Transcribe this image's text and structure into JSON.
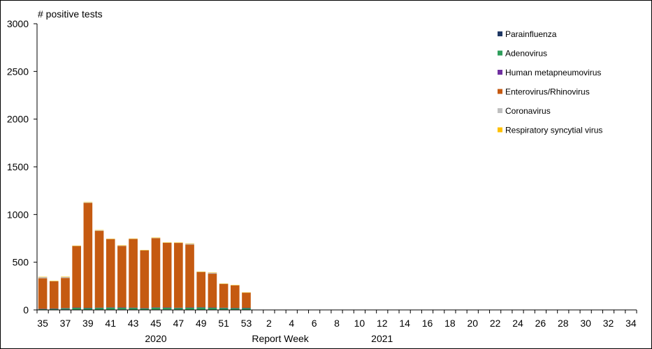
{
  "chart_data": {
    "type": "bar",
    "stacked": true,
    "ylabel": "# positive tests",
    "xlabel": "Report Week",
    "year_labels": [
      {
        "label": "2020",
        "at_week": "45"
      },
      {
        "label": "2021",
        "at_week": "12"
      }
    ],
    "ylim": [
      0,
      3000
    ],
    "yticks": [
      0,
      500,
      1000,
      1500,
      2000,
      2500,
      3000
    ],
    "grid": false,
    "legend_position": "top-right",
    "categories": [
      "35",
      "36",
      "37",
      "38",
      "39",
      "40",
      "41",
      "42",
      "43",
      "44",
      "45",
      "46",
      "47",
      "48",
      "49",
      "50",
      "51",
      "52",
      "53",
      "1",
      "2",
      "3",
      "4",
      "5",
      "6",
      "7",
      "8",
      "9",
      "10",
      "11",
      "12",
      "13",
      "14",
      "15",
      "16",
      "17",
      "18",
      "19",
      "20",
      "21",
      "22",
      "23",
      "24",
      "25",
      "26",
      "27",
      "28",
      "29",
      "30",
      "31",
      "32",
      "33",
      "34"
    ],
    "xtick_labels": [
      "35",
      "37",
      "39",
      "41",
      "43",
      "45",
      "47",
      "49",
      "51",
      "53",
      "2",
      "4",
      "6",
      "8",
      "10",
      "12",
      "14",
      "16",
      "18",
      "20",
      "22",
      "24",
      "26",
      "28",
      "30",
      "32",
      "34"
    ],
    "series": [
      {
        "name": "Parainfluenza",
        "color": "#1f3864",
        "values": [
          3,
          4,
          6,
          2,
          3,
          3,
          4,
          5,
          3,
          3,
          4,
          5,
          4,
          3,
          2,
          2,
          2,
          2,
          1,
          0,
          0,
          0,
          0,
          0,
          0,
          0,
          0,
          0,
          0,
          0,
          0,
          0,
          0,
          0,
          0,
          0,
          0,
          0,
          0,
          0,
          0,
          0,
          0,
          0,
          0,
          0,
          0,
          0,
          0,
          0,
          0,
          0,
          0
        ]
      },
      {
        "name": "Adenovirus",
        "color": "#2e9e5b",
        "values": [
          8,
          10,
          12,
          22,
          18,
          20,
          22,
          20,
          20,
          15,
          22,
          20,
          18,
          22,
          25,
          22,
          20,
          18,
          20,
          0,
          0,
          0,
          0,
          0,
          0,
          0,
          0,
          0,
          0,
          0,
          0,
          0,
          0,
          0,
          0,
          0,
          0,
          0,
          0,
          0,
          0,
          0,
          0,
          0,
          0,
          0,
          0,
          0,
          0,
          0,
          0,
          0,
          0
        ]
      },
      {
        "name": "Human metapneumovirus",
        "color": "#7030a0",
        "values": [
          1,
          1,
          2,
          1,
          1,
          1,
          1,
          1,
          1,
          1,
          1,
          1,
          1,
          1,
          1,
          1,
          1,
          1,
          1,
          0,
          0,
          0,
          0,
          0,
          0,
          0,
          0,
          0,
          0,
          0,
          0,
          0,
          0,
          0,
          0,
          0,
          0,
          0,
          0,
          0,
          0,
          0,
          0,
          0,
          0,
          0,
          0,
          0,
          0,
          0,
          0,
          0,
          0
        ]
      },
      {
        "name": "Enterovirus/Rhinovirus",
        "color": "#c55a11",
        "values": [
          320,
          285,
          315,
          645,
          1100,
          805,
          715,
          645,
          720,
          605,
          725,
          678,
          680,
          658,
          370,
          355,
          250,
          238,
          160,
          0,
          0,
          0,
          0,
          0,
          0,
          0,
          0,
          0,
          0,
          0,
          0,
          0,
          0,
          0,
          0,
          0,
          0,
          0,
          0,
          0,
          0,
          0,
          0,
          0,
          0,
          0,
          0,
          0,
          0,
          0,
          0,
          0,
          0
        ]
      },
      {
        "name": "Coronavirus",
        "color": "#bfbfbf",
        "values": [
          12,
          3,
          10,
          2,
          5,
          5,
          3,
          4,
          2,
          3,
          4,
          2,
          2,
          10,
          2,
          10,
          2,
          1,
          1,
          0,
          0,
          0,
          0,
          0,
          0,
          0,
          0,
          0,
          0,
          0,
          0,
          0,
          0,
          0,
          0,
          0,
          0,
          0,
          0,
          0,
          0,
          0,
          0,
          0,
          0,
          0,
          0,
          0,
          0,
          0,
          0,
          0,
          0
        ]
      },
      {
        "name": "Respiratory syncytial virus",
        "color": "#ffc000",
        "values": [
          3,
          2,
          4,
          2,
          3,
          3,
          2,
          2,
          2,
          2,
          3,
          2,
          2,
          3,
          2,
          3,
          2,
          1,
          1,
          0,
          0,
          0,
          0,
          0,
          0,
          0,
          0,
          0,
          0,
          0,
          0,
          0,
          0,
          0,
          0,
          0,
          0,
          0,
          0,
          0,
          0,
          0,
          0,
          0,
          0,
          0,
          0,
          0,
          0,
          0,
          0,
          0,
          0
        ]
      }
    ]
  }
}
